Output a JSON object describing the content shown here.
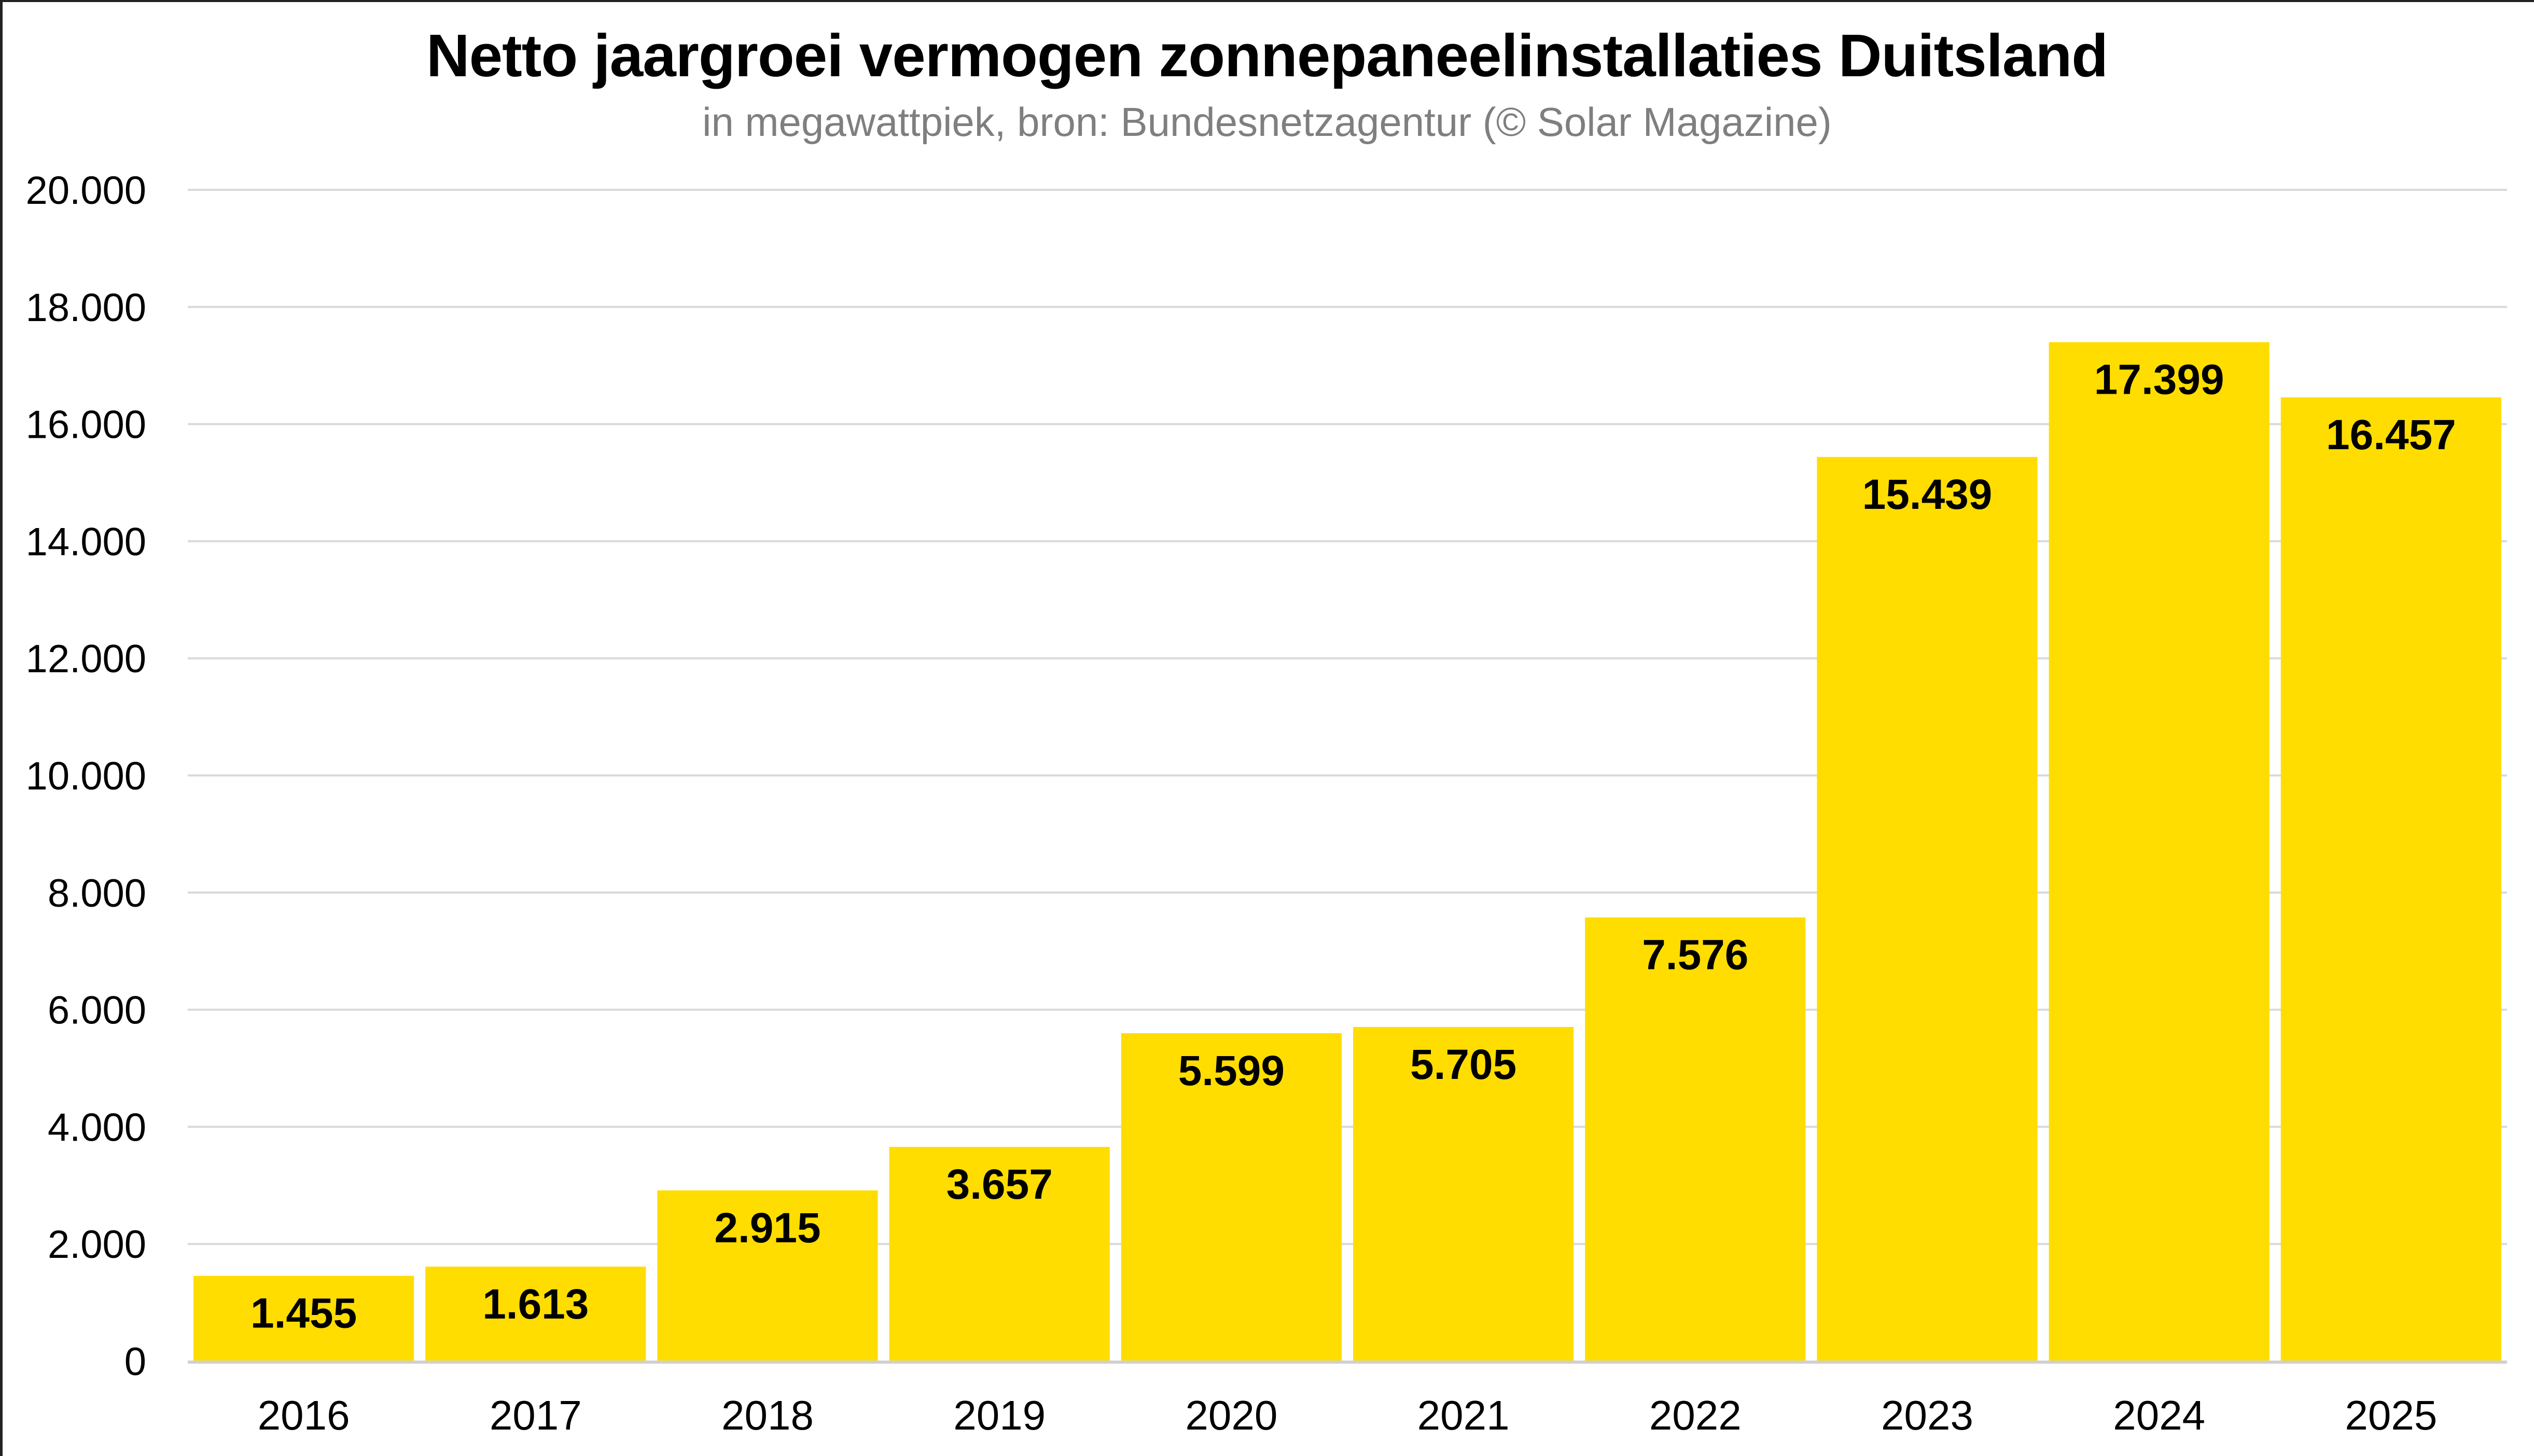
{
  "chart_data": {
    "type": "bar",
    "title": "Netto jaargroei vermogen zonnepaneelinstallaties Duitsland",
    "subtitle": "in megawattpiek, bron: Bundesnetzagentur (© Solar Magazine)",
    "xlabel": "",
    "ylabel": "",
    "categories": [
      "2016",
      "2017",
      "2018",
      "2019",
      "2020",
      "2021",
      "2022",
      "2023",
      "2024",
      "2025"
    ],
    "values": [
      1455,
      1613,
      2915,
      3657,
      5599,
      5705,
      7576,
      15439,
      17399,
      16457
    ],
    "value_labels": [
      "1.455",
      "1.613",
      "2.915",
      "3.657",
      "5.599",
      "5.705",
      "7.576",
      "15.439",
      "17.399",
      "16.457"
    ],
    "ylim": [
      0,
      20000
    ],
    "yticks": [
      0,
      2000,
      4000,
      6000,
      8000,
      10000,
      12000,
      14000,
      16000,
      18000,
      20000
    ],
    "ytick_labels": [
      "0",
      "2.000",
      "4.000",
      "6.000",
      "8.000",
      "10.000",
      "12.000",
      "14.000",
      "16.000",
      "18.000",
      "20.000"
    ],
    "grid": true,
    "legend": "none",
    "colors": {
      "bar": "#FFDD00",
      "grid": "#D9D9D9",
      "text": "#000000",
      "subtitle": "#7F7F7F"
    }
  }
}
